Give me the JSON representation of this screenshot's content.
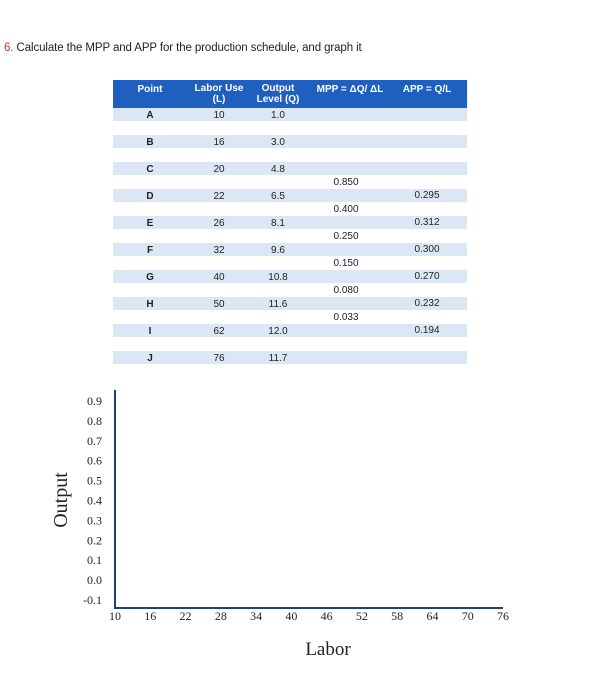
{
  "question": {
    "number": "6.",
    "text": "Calculate the MPP and APP for the production schedule, and graph it"
  },
  "table": {
    "headers": {
      "point": "Point",
      "labor": [
        "Labor Use",
        "(L)"
      ],
      "output": [
        "Output",
        "Level (Q)"
      ],
      "mpp": "MPP = ΔQ/ ΔL",
      "app": "APP = Q/L"
    },
    "rows": [
      {
        "point": "A",
        "labor": "10",
        "output": "1.0"
      },
      {
        "point": "B",
        "labor": "16",
        "output": "3.0"
      },
      {
        "point": "C",
        "labor": "20",
        "output": "4.8"
      },
      {
        "point": "D",
        "labor": "22",
        "output": "6.5",
        "app": "0.295"
      },
      {
        "point": "E",
        "labor": "26",
        "output": "8.1",
        "app": "0.312"
      },
      {
        "point": "F",
        "labor": "32",
        "output": "9.6",
        "app": "0.300"
      },
      {
        "point": "G",
        "labor": "40",
        "output": "10.8",
        "app": "0.270"
      },
      {
        "point": "H",
        "labor": "50",
        "output": "11.6",
        "app": "0.232"
      },
      {
        "point": "I",
        "labor": "62",
        "output": "12.0",
        "app": "0.194"
      },
      {
        "point": "J",
        "labor": "76",
        "output": "11.7"
      }
    ],
    "mpp_values": [
      "0.850",
      "0.400",
      "0.250",
      "0.150",
      "0.080",
      "0.033"
    ]
  },
  "chart_data": {
    "type": "line",
    "title": "",
    "xlabel": "Labor",
    "ylabel": "Output",
    "x_ticks": [
      "10",
      "16",
      "22",
      "28",
      "34",
      "40",
      "46",
      "52",
      "58",
      "64",
      "70",
      "76"
    ],
    "y_ticks": [
      "0.9",
      "0.8",
      "0.7",
      "0.6",
      "0.5",
      "0.4",
      "0.3",
      "0.2",
      "0.1",
      "0.0",
      "-0.1"
    ],
    "xlim": [
      10,
      76
    ],
    "ylim": [
      -0.1,
      0.9
    ],
    "series": []
  },
  "colors": {
    "header_bg": "#1f5fbf",
    "band_bg": "#dce7f5",
    "axis": "#1f3f7a",
    "question_number": "#c0392b"
  }
}
